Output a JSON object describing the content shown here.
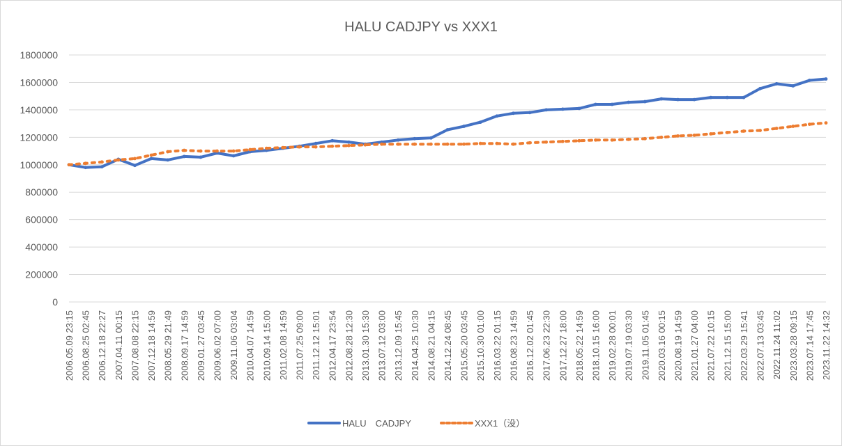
{
  "chart_data": {
    "type": "line",
    "title": "HALU CADJPY vs XXX1",
    "xlabel": "",
    "ylabel": "",
    "ylim": [
      0,
      1800000
    ],
    "y_ticks": [
      "0",
      "200000",
      "400000",
      "600000",
      "800000",
      "1000000",
      "1200000",
      "1400000",
      "1600000",
      "1800000"
    ],
    "grid": "horizontal",
    "legend_position": "bottom",
    "categories": [
      "2006.05.09 23:15",
      "2006.08.25 02:45",
      "2006.12.18 22:27",
      "2007.04.11 00:15",
      "2007.08.08 22:15",
      "2007.12.18 14:59",
      "2008.05.29 21:49",
      "2008.09.17 14:59",
      "2009.01.27 03:45",
      "2009.06.02 07:00",
      "2009.11.06 03:04",
      "2010.04.07 14:59",
      "2010.09.14 15:00",
      "2011.02.08 14:59",
      "2011.07.25 09:00",
      "2011.12.12 15:01",
      "2012.04.17 23:54",
      "2012.08.28 12:30",
      "2013.01.30 15:30",
      "2013.07.12 03:00",
      "2013.12.09 15:45",
      "2014.04.25 10:30",
      "2014.08.21 04:15",
      "2014.12.24 08:45",
      "2015.05.20 03:45",
      "2015.10.30 01:00",
      "2016.03.22 01:15",
      "2016.08.23 14:59",
      "2016.12.02 01:45",
      "2017.06.23 22:30",
      "2017.12.27 18:00",
      "2018.05.22 14:59",
      "2018.10.15 16:00",
      "2019.02.28 00:01",
      "2019.07.19 03:30",
      "2019.11.05 01:45",
      "2020.03.16 00:15",
      "2020.08.19 14:59",
      "2021.01.27 04:00",
      "2021.07.22 10:15",
      "2021.12.15 15:00",
      "2022.03.29 15:41",
      "2022.07.13 03:45",
      "2022.11.24 11:02",
      "2023.03.28 09:15",
      "2023.07.14 17:45",
      "2023.11.22 14:32"
    ],
    "series": [
      {
        "name": "HALU　CADJPY",
        "color": "#4472c4",
        "values": [
          1000000,
          980000,
          985000,
          1040000,
          995000,
          1045000,
          1035000,
          1060000,
          1055000,
          1085000,
          1065000,
          1095000,
          1105000,
          1120000,
          1135000,
          1155000,
          1175000,
          1165000,
          1150000,
          1165000,
          1180000,
          1190000,
          1195000,
          1255000,
          1280000,
          1310000,
          1355000,
          1375000,
          1380000,
          1400000,
          1405000,
          1410000,
          1440000,
          1440000,
          1455000,
          1460000,
          1480000,
          1475000,
          1475000,
          1490000,
          1490000,
          1490000,
          1555000,
          1590000,
          1575000,
          1615000,
          1625000
        ]
      },
      {
        "name": "XXX1（没）",
        "color": "#ed7d31",
        "values": [
          1000000,
          1010000,
          1020000,
          1035000,
          1045000,
          1070000,
          1095000,
          1105000,
          1100000,
          1100000,
          1100000,
          1110000,
          1120000,
          1125000,
          1130000,
          1130000,
          1135000,
          1140000,
          1145000,
          1150000,
          1150000,
          1150000,
          1150000,
          1150000,
          1150000,
          1155000,
          1155000,
          1150000,
          1160000,
          1165000,
          1170000,
          1175000,
          1180000,
          1180000,
          1185000,
          1190000,
          1200000,
          1210000,
          1215000,
          1225000,
          1235000,
          1245000,
          1250000,
          1265000,
          1280000,
          1295000,
          1305000
        ]
      }
    ]
  }
}
